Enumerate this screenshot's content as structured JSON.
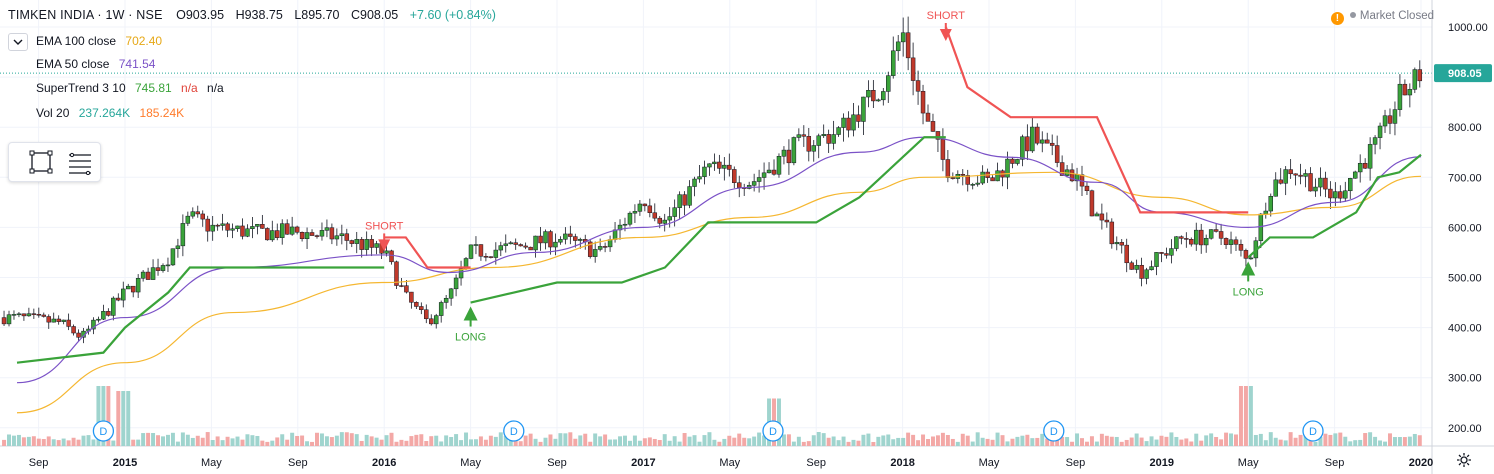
{
  "header": {
    "symbol": "TIMKEN INDIA · 1W · NSE",
    "open": "O903.95",
    "high": "H938.75",
    "low": "L895.70",
    "close": "C908.05",
    "change": "+7.60 (+0.84%)"
  },
  "indicators": [
    {
      "label": "EMA 100 close",
      "values": [
        "702.40"
      ],
      "colors": [
        "#e6a817"
      ]
    },
    {
      "label": "EMA 50 close",
      "values": [
        "741.54"
      ],
      "colors": [
        "#7b52c7"
      ]
    },
    {
      "label": "SuperTrend 3 10",
      "values": [
        "745.81",
        "n/a",
        "n/a"
      ],
      "colors": [
        "#3aa33a",
        "#e0443a",
        "#131722"
      ]
    },
    {
      "label": "Vol 20",
      "values": [
        "237.264K",
        "185.24K"
      ],
      "colors": [
        "#26a69a",
        "#ff7b2b"
      ]
    }
  ],
  "market_status": "Market Closed",
  "icons": {
    "collapse": "chevron-down-icon",
    "rect_tool": "rectangle-tool-icon",
    "lines_tool": "lines-tool-icon",
    "warning": "warning-icon",
    "settings": "gear-icon"
  },
  "colors": {
    "up": "#26a69a",
    "down": "#ef5350",
    "candle_up_fill": "#3aa33a",
    "candle_down_fill": "#c0392b",
    "ema100": "#f5b731",
    "ema50": "#7b52c7",
    "supertrend_up": "#3aa33a",
    "supertrend_down": "#f05454",
    "vol_up": "#9fd4ce",
    "vol_down": "#f3a8a6",
    "price_badge": "#26a69a",
    "dividend": "#2196f3"
  },
  "chart_data": {
    "type": "candlestick",
    "title": "TIMKEN INDIA · 1W · NSE",
    "x_ticks": [
      "Sep",
      "2015",
      "May",
      "Sep",
      "2016",
      "May",
      "Sep",
      "2017",
      "May",
      "Sep",
      "2018",
      "May",
      "Sep",
      "2019",
      "May",
      "Sep",
      "2020"
    ],
    "y_ticks": [
      200,
      300,
      400,
      500,
      600,
      700,
      800,
      900,
      1000
    ],
    "ylim": [
      170,
      1020
    ],
    "last_price": "908.05",
    "price_keypoints": [
      [
        "2014-08",
        420
      ],
      [
        "2014-10",
        410
      ],
      [
        "2014-11",
        380
      ],
      [
        "2015-01",
        470
      ],
      [
        "2015-03",
        540
      ],
      [
        "2015-04",
        620
      ],
      [
        "2015-05",
        600
      ],
      [
        "2015-07",
        590
      ],
      [
        "2015-09",
        590
      ],
      [
        "2015-11",
        580
      ],
      [
        "2016-01",
        550
      ],
      [
        "2016-02",
        460
      ],
      [
        "2016-03",
        410
      ],
      [
        "2016-04",
        460
      ],
      [
        "2016-05",
        550
      ],
      [
        "2016-07",
        560
      ],
      [
        "2016-09",
        580
      ],
      [
        "2016-11",
        550
      ],
      [
        "2017-01",
        660
      ],
      [
        "2017-02",
        610
      ],
      [
        "2017-04",
        720
      ],
      [
        "2017-06",
        690
      ],
      [
        "2017-08",
        760
      ],
      [
        "2017-10",
        790
      ],
      [
        "2017-12",
        880
      ],
      [
        "2018-01",
        990
      ],
      [
        "2018-02",
        820
      ],
      [
        "2018-03",
        720
      ],
      [
        "2018-05",
        690
      ],
      [
        "2018-07",
        780
      ],
      [
        "2018-09",
        700
      ],
      [
        "2018-10",
        620
      ],
      [
        "2018-12",
        510
      ],
      [
        "2019-02",
        580
      ],
      [
        "2019-04",
        580
      ],
      [
        "2019-05",
        530
      ],
      [
        "2019-06",
        680
      ],
      [
        "2019-07",
        720
      ],
      [
        "2019-09",
        660
      ],
      [
        "2019-11",
        770
      ],
      [
        "2019-12",
        860
      ],
      [
        "2020-01",
        908
      ]
    ],
    "ema100_points": [
      [
        "2014-08",
        230
      ],
      [
        "2015-01",
        330
      ],
      [
        "2015-06",
        430
      ],
      [
        "2016-01",
        490
      ],
      [
        "2016-06",
        520
      ],
      [
        "2017-01",
        580
      ],
      [
        "2017-06",
        620
      ],
      [
        "2017-11",
        670
      ],
      [
        "2018-02",
        700
      ],
      [
        "2018-08",
        710
      ],
      [
        "2019-01",
        660
      ],
      [
        "2019-05",
        625
      ],
      [
        "2019-09",
        640
      ],
      [
        "2020-01",
        702
      ]
    ],
    "ema50_points": [
      [
        "2014-08",
        290
      ],
      [
        "2015-01",
        420
      ],
      [
        "2015-06",
        520
      ],
      [
        "2016-01",
        545
      ],
      [
        "2016-04",
        510
      ],
      [
        "2016-08",
        550
      ],
      [
        "2017-01",
        600
      ],
      [
        "2017-06",
        680
      ],
      [
        "2017-11",
        750
      ],
      [
        "2018-02",
        780
      ],
      [
        "2018-06",
        740
      ],
      [
        "2018-10",
        690
      ],
      [
        "2019-01",
        630
      ],
      [
        "2019-05",
        600
      ],
      [
        "2019-09",
        650
      ],
      [
        "2020-01",
        741
      ]
    ],
    "supertrend_segments": [
      {
        "dir": "up",
        "points": [
          [
            "2014-08",
            330
          ],
          [
            "2014-12",
            350
          ],
          [
            "2015-01",
            400
          ],
          [
            "2015-03",
            470
          ],
          [
            "2015-04",
            520
          ],
          [
            "2016-01",
            520
          ]
        ]
      },
      {
        "dir": "down",
        "points": [
          [
            "2016-01",
            580
          ],
          [
            "2016-02",
            580
          ],
          [
            "2016-03",
            520
          ],
          [
            "2016-05",
            520
          ]
        ]
      },
      {
        "dir": "up",
        "points": [
          [
            "2016-05",
            450
          ],
          [
            "2016-07",
            470
          ],
          [
            "2016-09",
            490
          ],
          [
            "2016-12",
            490
          ],
          [
            "2017-02",
            520
          ],
          [
            "2017-04",
            610
          ],
          [
            "2017-09",
            610
          ],
          [
            "2017-11",
            660
          ],
          [
            "2018-02",
            780
          ],
          [
            "2018-03",
            780
          ]
        ]
      },
      {
        "dir": "down",
        "points": [
          [
            "2018-03",
            1000
          ],
          [
            "2018-04",
            880
          ],
          [
            "2018-06",
            820
          ],
          [
            "2018-10",
            820
          ],
          [
            "2018-12",
            630
          ],
          [
            "2019-05",
            630
          ]
        ]
      },
      {
        "dir": "up",
        "points": [
          [
            "2019-05",
            540
          ],
          [
            "2019-06",
            580
          ],
          [
            "2019-08",
            580
          ],
          [
            "2019-10",
            630
          ],
          [
            "2019-11",
            700
          ],
          [
            "2019-12",
            710
          ],
          [
            "2020-01",
            745
          ]
        ]
      }
    ],
    "signals": [
      {
        "type": "SHORT",
        "date": "2016-01",
        "price": 580
      },
      {
        "type": "LONG",
        "date": "2016-05",
        "price": 450
      },
      {
        "type": "SHORT",
        "date": "2018-03",
        "price": 1000
      },
      {
        "type": "LONG",
        "date": "2019-05",
        "price": 540
      }
    ],
    "dividends": [
      {
        "label": "D",
        "date": "2014-12"
      },
      {
        "label": "D",
        "date": "2016-07"
      },
      {
        "label": "D",
        "date": "2017-07"
      },
      {
        "label": "D",
        "date": "2018-08"
      },
      {
        "label": "D",
        "date": "2019-08"
      }
    ],
    "volume_spikes": [
      [
        "2014-12",
        0.8
      ],
      [
        "2015-01",
        0.7
      ],
      [
        "2017-07",
        0.55
      ],
      [
        "2019-05",
        0.8
      ]
    ]
  }
}
